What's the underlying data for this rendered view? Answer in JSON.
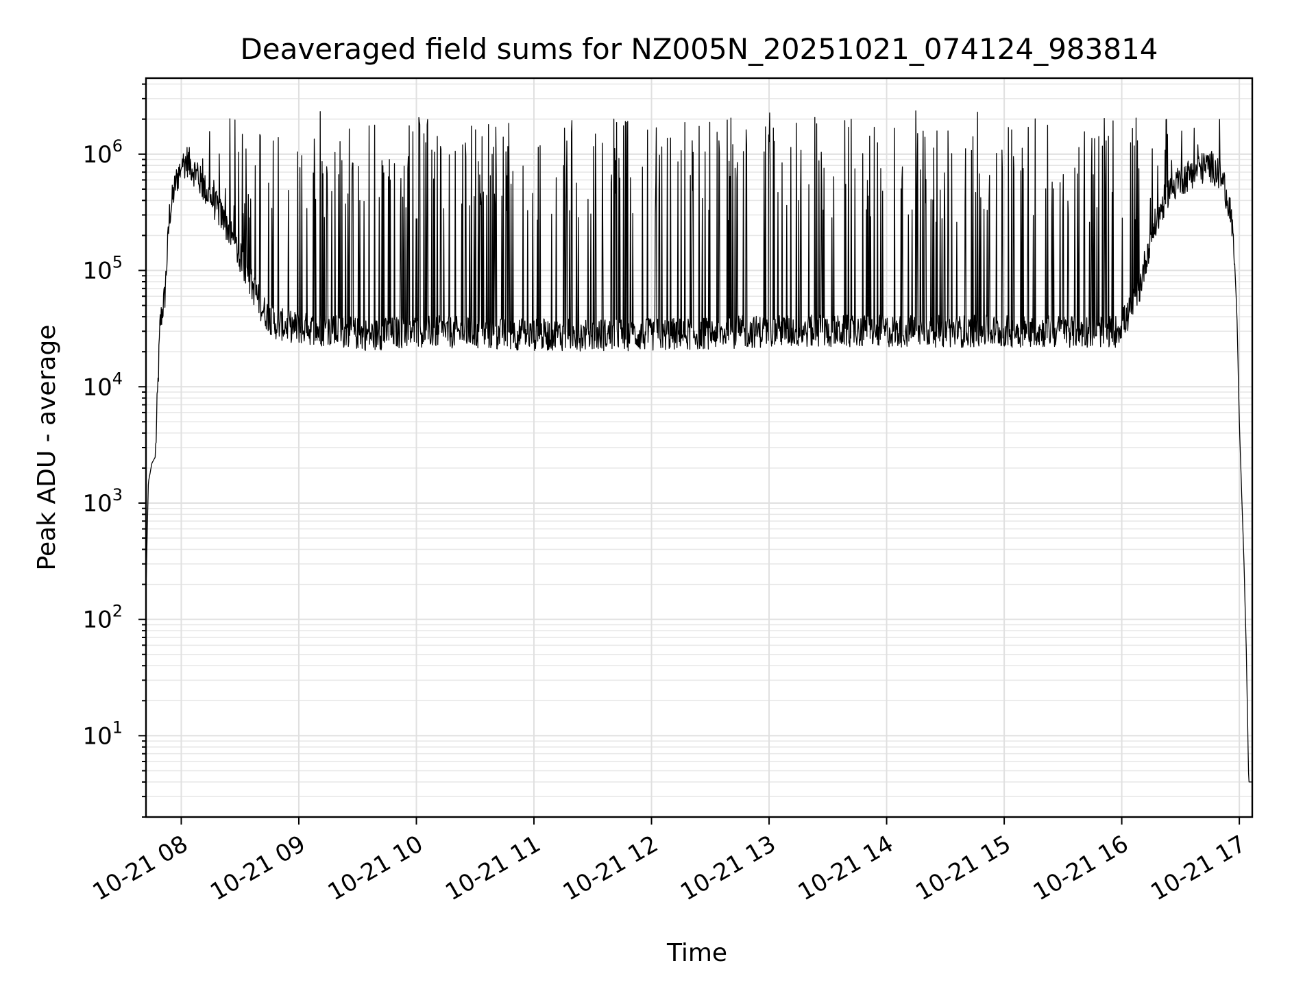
{
  "chart_data": {
    "type": "line",
    "title": "Deaveraged field sums for NZ005N_20251021_074124_983814",
    "xlabel": "Time",
    "ylabel": "Peak ADU - average",
    "yscale": "log",
    "ylim": [
      2,
      4500000
    ],
    "xlim_hours": [
      7.7,
      17.11
    ],
    "grid": true,
    "x_ticks": [
      {
        "hour": 8,
        "label": "10-21 08"
      },
      {
        "hour": 9,
        "label": "10-21 09"
      },
      {
        "hour": 10,
        "label": "10-21 10"
      },
      {
        "hour": 11,
        "label": "10-21 11"
      },
      {
        "hour": 12,
        "label": "10-21 12"
      },
      {
        "hour": 13,
        "label": "10-21 13"
      },
      {
        "hour": 14,
        "label": "10-21 14"
      },
      {
        "hour": 15,
        "label": "10-21 15"
      },
      {
        "hour": 16,
        "label": "10-21 16"
      },
      {
        "hour": 17,
        "label": "10-21 17"
      }
    ],
    "y_ticks": [
      {
        "value": 10,
        "base": "10",
        "exp": "1"
      },
      {
        "value": 100,
        "base": "10",
        "exp": "2"
      },
      {
        "value": 1000,
        "base": "10",
        "exp": "3"
      },
      {
        "value": 10000,
        "base": "10",
        "exp": "4"
      },
      {
        "value": 100000,
        "base": "10",
        "exp": "5"
      },
      {
        "value": 1000000,
        "base": "10",
        "exp": "6"
      }
    ],
    "series": [
      {
        "name": "deaveraged field sum",
        "color": "#000000",
        "envelope_hours": [
          7.7,
          7.72,
          7.75,
          7.78,
          7.82,
          7.86,
          7.9,
          7.95,
          8.0,
          8.05,
          8.1,
          8.2,
          8.3,
          8.4,
          8.5,
          8.6,
          8.7,
          8.8,
          9.0,
          9.3,
          9.6,
          10.0,
          11.0,
          12.0,
          13.0,
          14.0,
          15.0,
          15.8,
          15.95,
          16.05,
          16.15,
          16.25,
          16.4,
          16.6,
          16.75,
          16.85,
          16.92,
          16.96,
          16.98,
          17.0,
          17.02,
          17.04,
          17.06,
          17.08,
          17.11
        ],
        "envelope_values": [
          180,
          1500,
          2200,
          2500,
          35000,
          60000,
          300000,
          550000,
          800000,
          880000,
          750000,
          500000,
          350000,
          230000,
          130000,
          75000,
          45000,
          35000,
          32000,
          30000,
          28000,
          30000,
          28000,
          28000,
          30000,
          30000,
          30000,
          30000,
          30000,
          40000,
          70000,
          200000,
          500000,
          700000,
          800000,
          650000,
          350000,
          120000,
          40000,
          5000,
          1200,
          300,
          50,
          4,
          4
        ],
        "spike_peak_typical": 1100000,
        "spike_peak_max": 2400000
      }
    ]
  }
}
